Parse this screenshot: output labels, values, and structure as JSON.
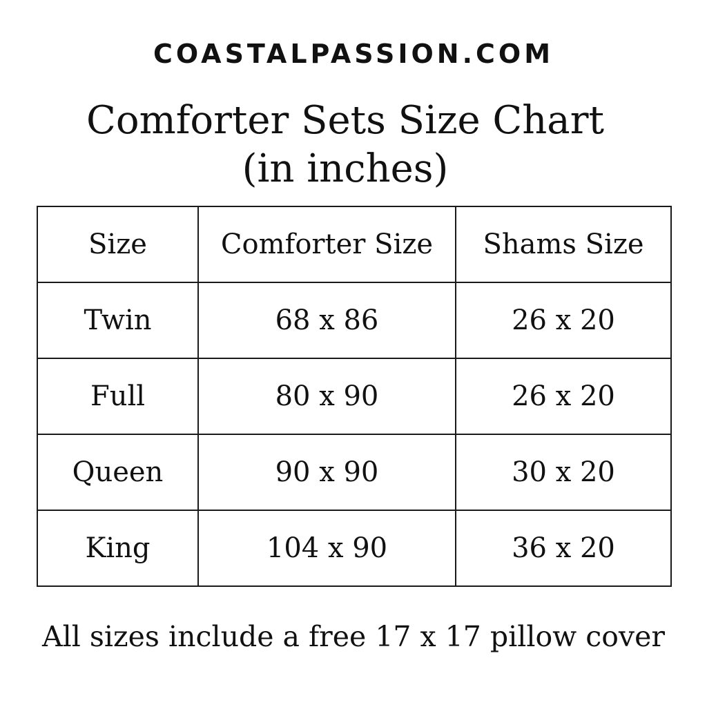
{
  "brand": "COASTALPASSION.COM",
  "title": {
    "line1": "Comforter Sets Size Chart",
    "line2": "(in inches)"
  },
  "table": {
    "headers": [
      "Size",
      "Comforter Size",
      "Shams Size"
    ],
    "rows": [
      [
        "Twin",
        "68 x 86",
        "26 x 20"
      ],
      [
        "Full",
        "80 x 90",
        "26 x 20"
      ],
      [
        "Queen",
        "90 x 90",
        "30 x 20"
      ],
      [
        "King",
        "104 x 90",
        "36 x 20"
      ]
    ]
  },
  "footer": "All sizes include a free 17 x 17 pillow cover"
}
